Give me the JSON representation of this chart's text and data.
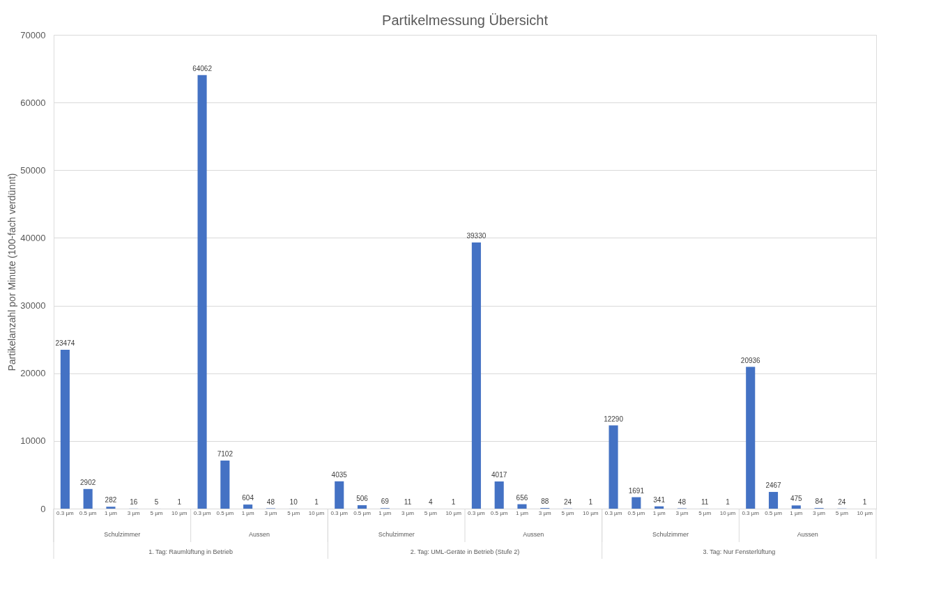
{
  "chart_data": {
    "type": "bar",
    "title": "Partikelmessung Übersicht",
    "ylabel": "Partikelanzahl por Minute (100-fach verdünnt)",
    "categories": [
      "0.3 µm",
      "0.5 µm",
      "1 µm",
      "3 µm",
      "5 µm",
      "10 µm",
      "0.3 µm",
      "0.5 µm",
      "1 µm",
      "3 µm",
      "5 µm",
      "10 µm",
      "0.3 µm",
      "0.5 µm",
      "1 µm",
      "3 µm",
      "5 µm",
      "10 µm",
      "0.3 µm",
      "0.5 µm",
      "1 µm",
      "3 µm",
      "5 µm",
      "10 µm",
      "0.3 µm",
      "0.5 µm",
      "1 µm",
      "3 µm",
      "5 µm",
      "10 µm",
      "0.3 µm",
      "0.5 µm",
      "1 µm",
      "3 µm",
      "5 µm",
      "10 µm"
    ],
    "values": [
      23474,
      2902,
      282,
      16,
      5,
      1,
      64062,
      7102,
      604,
      48,
      10,
      1,
      4035,
      506,
      69,
      11,
      4,
      1,
      39330,
      4017,
      656,
      88,
      24,
      1,
      12290,
      1691,
      341,
      48,
      11,
      1,
      20936,
      2467,
      475,
      84,
      24,
      1
    ],
    "color": "#4472c4",
    "ylim": [
      0,
      70000
    ],
    "yticks": [
      0,
      10000,
      20000,
      30000,
      40000,
      50000,
      60000,
      70000
    ],
    "grid": "y",
    "data_labels": true,
    "annotations": [
      "Schulzimmer",
      "Aussen",
      "Schulzimmer",
      "Aussen",
      "Schulzimmer",
      "Aussen",
      "1. Tag: Raumlüftung in Betrieb",
      "2. Tag: UML-Geräte in Betrieb (Stufe 2)",
      "3. Tag: Nur Fensterlüftung"
    ]
  }
}
